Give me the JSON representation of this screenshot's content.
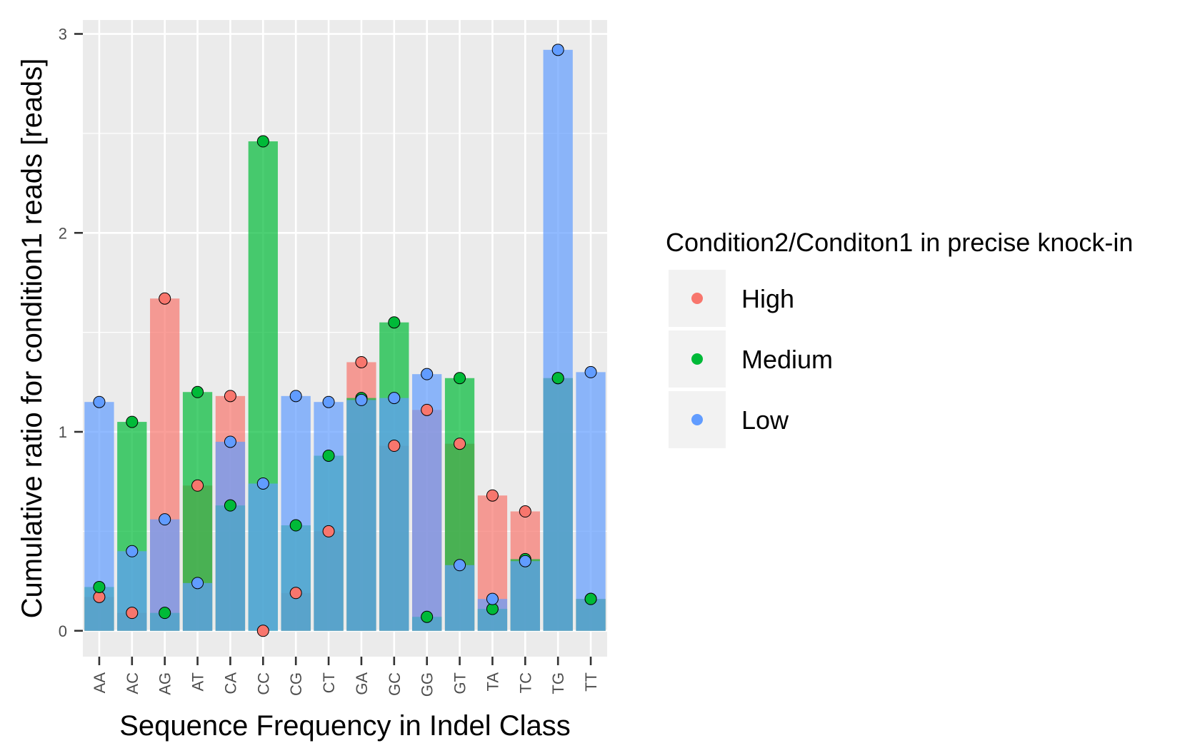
{
  "chart_data": {
    "type": "bar",
    "xlabel": "Sequence Frequency in Indel Class",
    "ylabel": "Cumulative ratio for condition1 reads [reads]",
    "ylim": [
      -0.13,
      3.07
    ],
    "yticks": [
      0,
      1,
      2,
      3
    ],
    "grid": true,
    "legend_position": "right",
    "categories": [
      "AA",
      "AC",
      "AG",
      "AT",
      "CA",
      "CC",
      "CG",
      "CT",
      "GA",
      "GC",
      "GG",
      "GT",
      "TA",
      "TC",
      "TG",
      "TT"
    ],
    "series": [
      {
        "name": "High",
        "color": "#F8766D",
        "values": [
          0.17,
          0.09,
          1.67,
          0.73,
          1.18,
          0.0,
          0.19,
          0.5,
          1.35,
          0.93,
          1.11,
          0.94,
          0.68,
          0.6,
          1.27,
          0.16
        ]
      },
      {
        "name": "Medium",
        "color": "#00BA38",
        "values": [
          0.22,
          1.05,
          0.09,
          1.2,
          0.63,
          2.46,
          0.53,
          0.88,
          1.17,
          1.55,
          0.07,
          1.27,
          0.11,
          0.36,
          1.27,
          0.16
        ]
      },
      {
        "name": "Low",
        "color": "#619CFF",
        "values": [
          1.15,
          0.4,
          0.56,
          0.24,
          0.95,
          0.74,
          1.18,
          1.15,
          1.16,
          1.17,
          1.29,
          0.33,
          0.16,
          0.35,
          2.92,
          1.3
        ]
      }
    ],
    "legend": {
      "title": "Condition2/Conditon1 in precise knock-in",
      "entries": [
        "High",
        "Medium",
        "Low"
      ]
    }
  }
}
